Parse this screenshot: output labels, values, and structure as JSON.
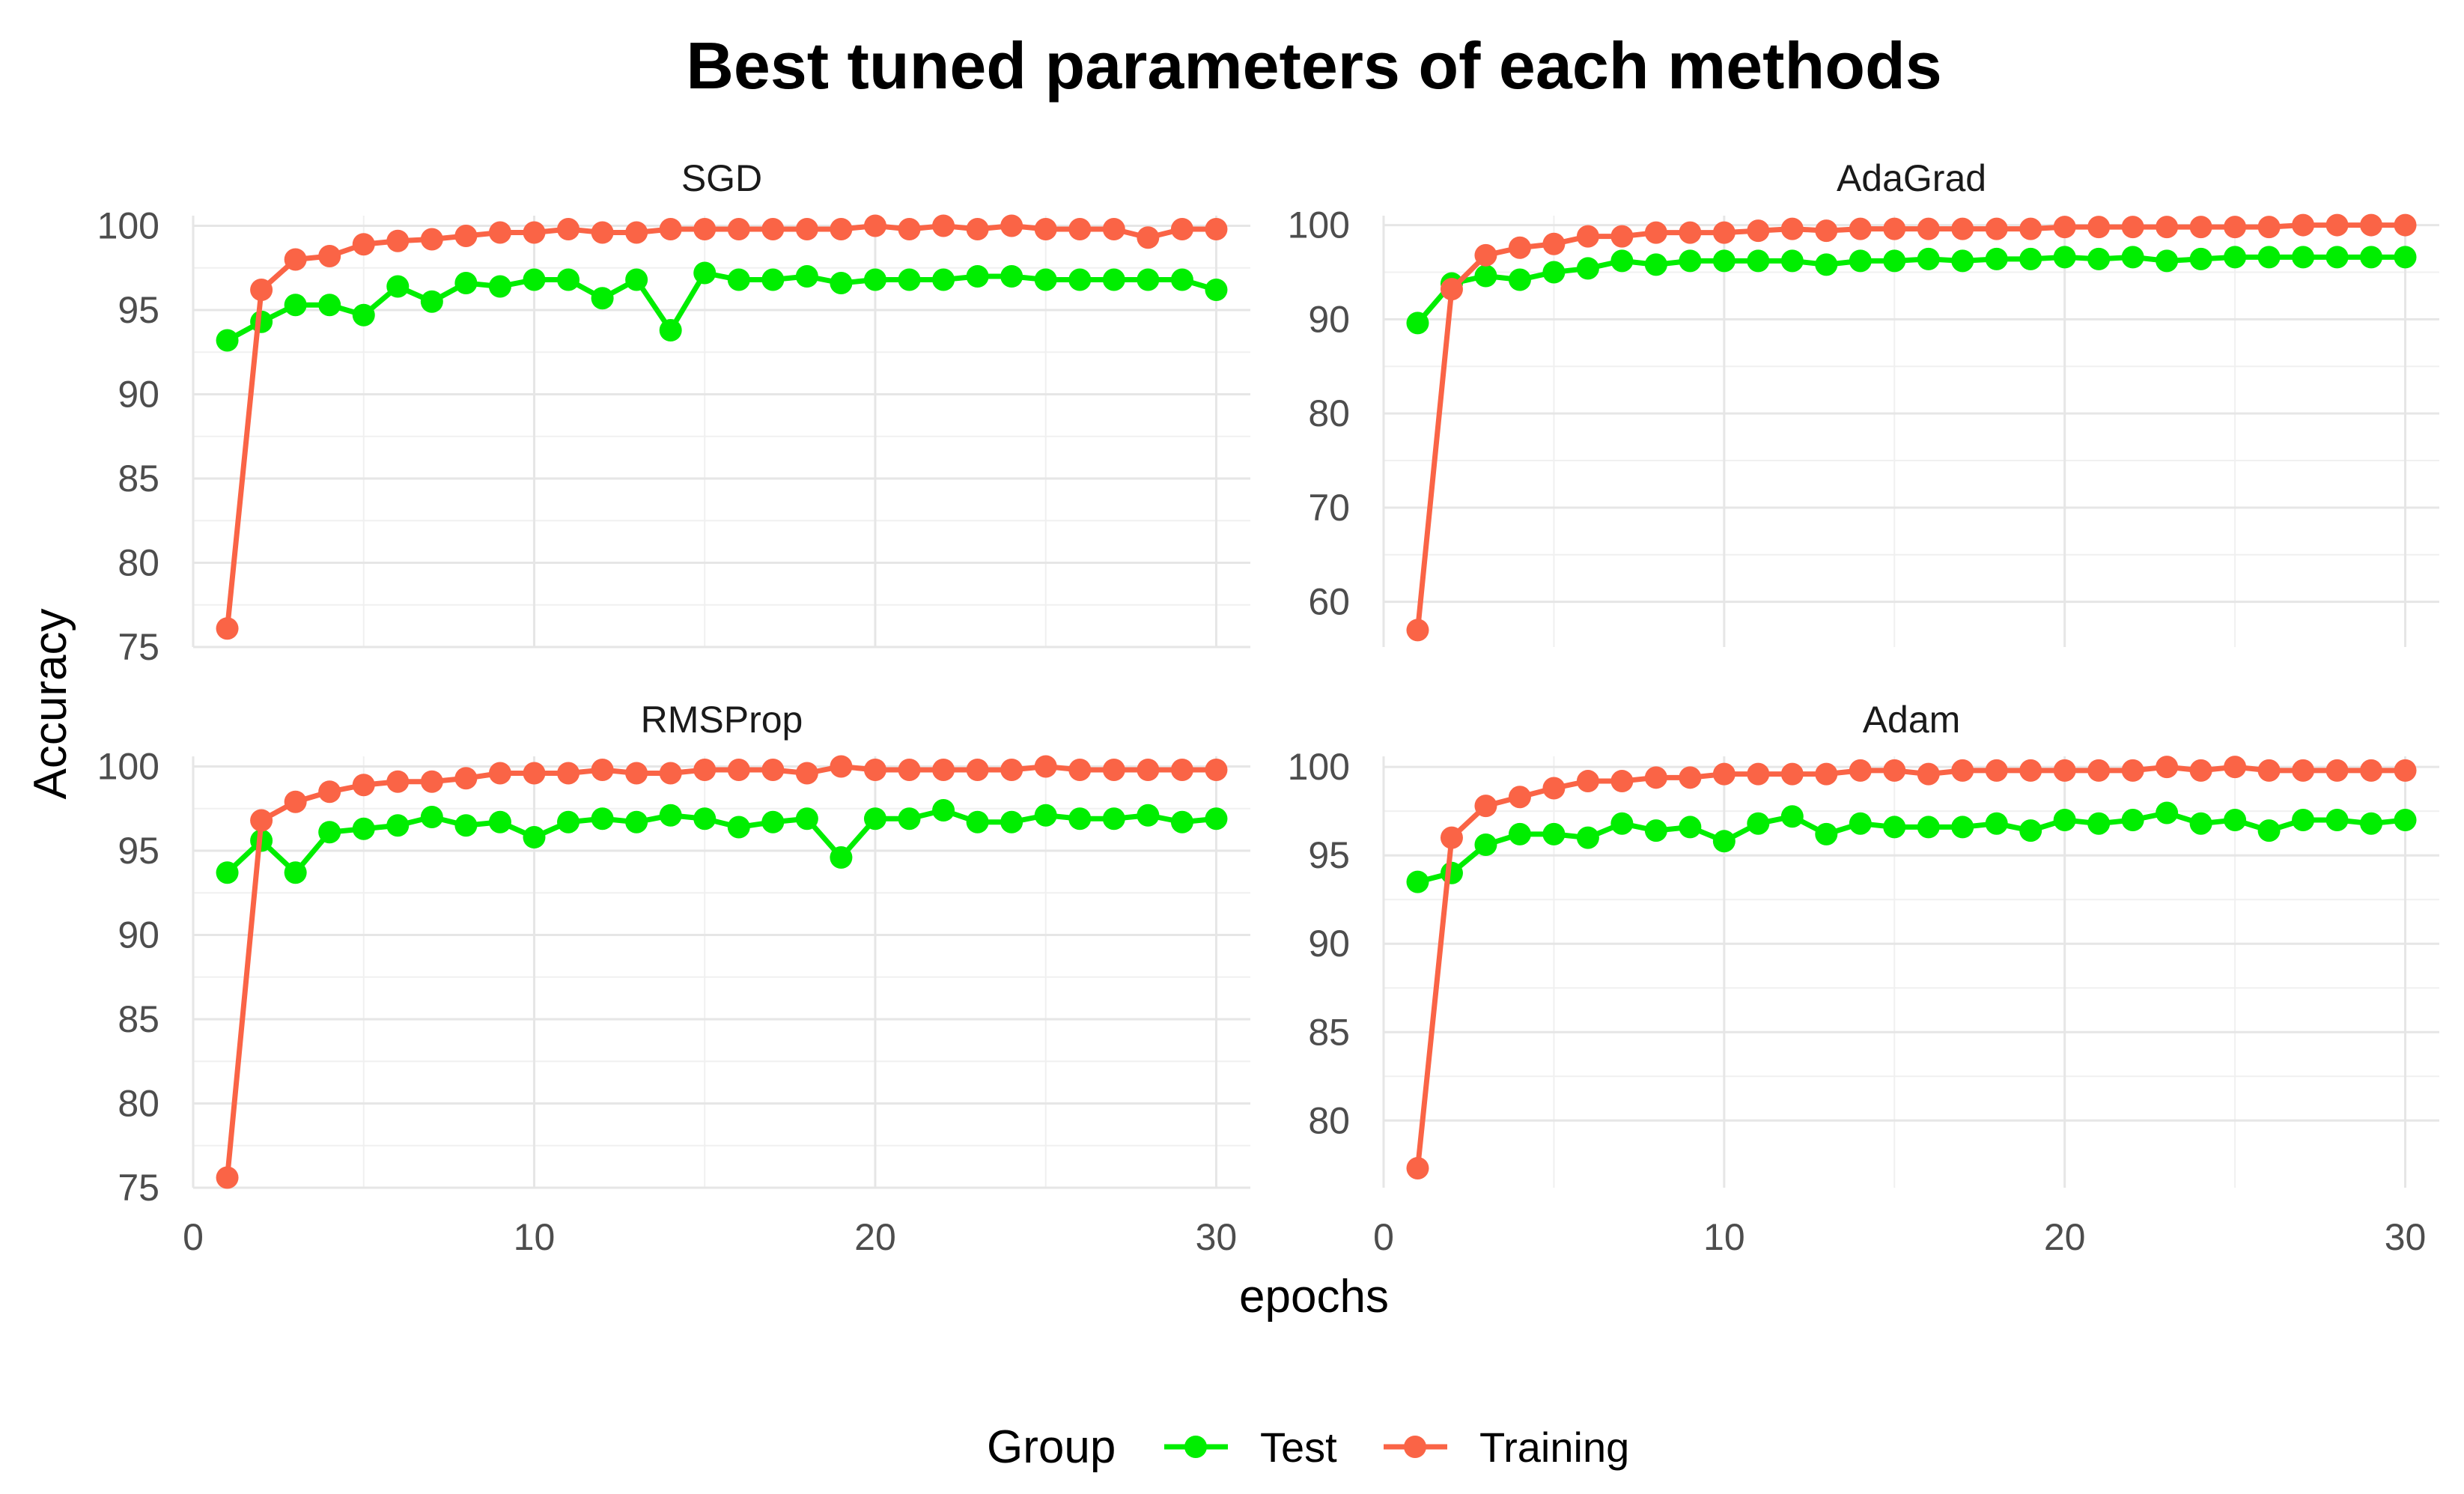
{
  "chart_data": {
    "type": "line",
    "title": "Best tuned parameters of each methods",
    "xlabel": "epochs",
    "ylabel": "Accuracy",
    "legend": {
      "title": "Group",
      "position": "bottom",
      "entries": [
        {
          "name": "Test",
          "color": "#00ee00"
        },
        {
          "name": "Training",
          "color": "#fa6446"
        }
      ]
    },
    "grid": true,
    "x": [
      1,
      2,
      3,
      4,
      5,
      6,
      7,
      8,
      9,
      10,
      11,
      12,
      13,
      14,
      15,
      16,
      17,
      18,
      19,
      20,
      21,
      22,
      23,
      24,
      25,
      26,
      27,
      28,
      29,
      30
    ],
    "xlim": [
      0,
      31
    ],
    "xticks": [
      0,
      10,
      20,
      30
    ],
    "xtick_labels": [
      "0",
      "10",
      "20",
      "30"
    ],
    "panels": [
      {
        "name": "SGD",
        "ylim": [
          75,
          100.6
        ],
        "yticks": [
          75,
          80,
          85,
          90,
          95,
          100
        ],
        "ytick_labels": [
          "75",
          "80",
          "85",
          "90",
          "95",
          "100"
        ],
        "series": [
          {
            "name": "Test",
            "values": [
              93.2,
              94.3,
              95.3,
              95.3,
              94.7,
              96.4,
              95.5,
              96.6,
              96.4,
              96.8,
              96.8,
              95.7,
              96.8,
              93.8,
              97.2,
              96.8,
              96.8,
              97.0,
              96.6,
              96.8,
              96.8,
              96.8,
              97.0,
              97.0,
              96.8,
              96.8,
              96.8,
              96.8,
              96.8,
              96.2
            ]
          },
          {
            "name": "Training",
            "values": [
              76.1,
              96.2,
              98.0,
              98.2,
              98.9,
              99.1,
              99.2,
              99.4,
              99.6,
              99.6,
              99.8,
              99.6,
              99.6,
              99.8,
              99.8,
              99.8,
              99.8,
              99.8,
              99.8,
              100.0,
              99.8,
              100.0,
              99.8,
              100.0,
              99.8,
              99.8,
              99.8,
              99.3,
              99.8,
              99.8
            ]
          }
        ]
      },
      {
        "name": "AdaGrad",
        "ylim": [
          55.2,
          101
        ],
        "yticks": [
          60,
          70,
          80,
          90,
          100
        ],
        "ytick_labels": [
          "60",
          "70",
          "80",
          "90",
          "100"
        ],
        "series": [
          {
            "name": "Test",
            "values": [
              89.6,
              93.8,
              94.6,
              94.2,
              95.0,
              95.4,
              96.2,
              95.8,
              96.2,
              96.2,
              96.2,
              96.2,
              95.8,
              96.2,
              96.2,
              96.4,
              96.2,
              96.4,
              96.4,
              96.6,
              96.4,
              96.6,
              96.2,
              96.4,
              96.6,
              96.6,
              96.6,
              96.6,
              96.6,
              96.6
            ]
          },
          {
            "name": "Training",
            "values": [
              57.0,
              93.2,
              96.8,
              97.6,
              98.0,
              98.8,
              98.8,
              99.2,
              99.2,
              99.2,
              99.4,
              99.6,
              99.4,
              99.6,
              99.6,
              99.6,
              99.6,
              99.6,
              99.6,
              99.8,
              99.8,
              99.8,
              99.8,
              99.8,
              99.8,
              99.8,
              100.0,
              100.0,
              100.0,
              100.0
            ]
          }
        ]
      },
      {
        "name": "RMSProp",
        "ylim": [
          75,
          100.6
        ],
        "yticks": [
          75,
          80,
          85,
          90,
          95,
          100
        ],
        "ytick_labels": [
          "75",
          "80",
          "85",
          "90",
          "95",
          "100"
        ],
        "series": [
          {
            "name": "Test",
            "values": [
              93.7,
              95.6,
              93.7,
              96.1,
              96.3,
              96.5,
              97.0,
              96.5,
              96.7,
              95.8,
              96.7,
              96.9,
              96.7,
              97.1,
              96.9,
              96.4,
              96.7,
              96.9,
              94.6,
              96.9,
              96.9,
              97.4,
              96.7,
              96.7,
              97.1,
              96.9,
              96.9,
              97.1,
              96.7,
              96.9
            ]
          },
          {
            "name": "Training",
            "values": [
              75.6,
              96.8,
              97.9,
              98.5,
              98.9,
              99.1,
              99.1,
              99.3,
              99.6,
              99.6,
              99.6,
              99.8,
              99.6,
              99.6,
              99.8,
              99.8,
              99.8,
              99.6,
              100.0,
              99.8,
              99.8,
              99.8,
              99.8,
              99.8,
              100.0,
              99.8,
              99.8,
              99.8,
              99.8,
              99.8
            ]
          }
        ]
      },
      {
        "name": "Adam",
        "ylim": [
          76.2,
          100.6
        ],
        "yticks": [
          80,
          85,
          90,
          95,
          100
        ],
        "ytick_labels": [
          "80",
          "85",
          "90",
          "95",
          "100"
        ],
        "series": [
          {
            "name": "Test",
            "values": [
              93.5,
              94.0,
              95.6,
              96.2,
              96.2,
              96.0,
              96.8,
              96.4,
              96.6,
              95.8,
              96.8,
              97.2,
              96.2,
              96.8,
              96.6,
              96.6,
              96.6,
              96.8,
              96.4,
              97.0,
              96.8,
              97.0,
              97.4,
              96.8,
              97.0,
              96.4,
              97.0,
              97.0,
              96.8,
              97.0
            ]
          },
          {
            "name": "Training",
            "values": [
              77.3,
              96.0,
              97.8,
              98.3,
              98.8,
              99.2,
              99.2,
              99.4,
              99.4,
              99.6,
              99.6,
              99.6,
              99.6,
              99.8,
              99.8,
              99.6,
              99.8,
              99.8,
              99.8,
              99.8,
              99.8,
              99.8,
              100.0,
              99.8,
              100.0,
              99.8,
              99.8,
              99.8,
              99.8,
              99.8
            ]
          }
        ]
      }
    ]
  }
}
